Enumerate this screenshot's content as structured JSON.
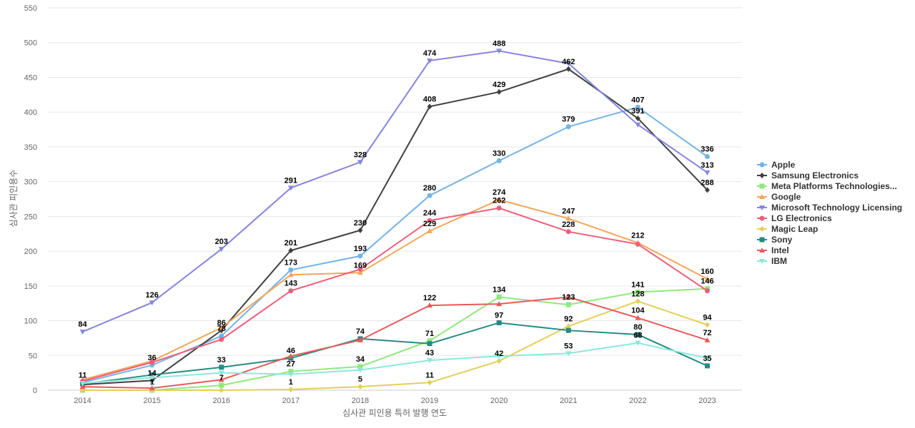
{
  "chart_data": {
    "type": "line",
    "title": "",
    "xlabel": "심사관 피인용 특허 발행 연도",
    "ylabel": "심사관 피인용수",
    "ylim": [
      0,
      550
    ],
    "yticks": [
      0,
      50,
      100,
      150,
      200,
      250,
      300,
      350,
      400,
      450,
      500,
      550
    ],
    "grid": true,
    "legend_position": "right",
    "x": [
      "2014",
      "2015",
      "2016",
      "2017",
      "2018",
      "2019",
      "2020",
      "2021",
      "2022",
      "2023"
    ],
    "series": [
      {
        "name": "Apple",
        "color": "#74b3e6",
        "marker": "circle",
        "values": [
          11,
          36,
          78,
          173,
          193,
          280,
          330,
          379,
          407,
          336
        ]
      },
      {
        "name": "Samsung Electronics",
        "color": "#404040",
        "marker": "diamond",
        "values": [
          8,
          14,
          86,
          201,
          230,
          408,
          429,
          462,
          391,
          288
        ]
      },
      {
        "name": "Meta Platforms Technologies...",
        "color": "#8fe87c",
        "marker": "square",
        "values": [
          0,
          0,
          7,
          27,
          34,
          71,
          134,
          123,
          141,
          146
        ]
      },
      {
        "name": "Google",
        "color": "#f4a55a",
        "marker": "triangle",
        "values": [
          15,
          42,
          90,
          166,
          169,
          229,
          274,
          247,
          212,
          160
        ]
      },
      {
        "name": "Microsoft Technology Licensing",
        "color": "#8585e0",
        "marker": "triangle-down",
        "values": [
          84,
          126,
          203,
          291,
          328,
          474,
          488,
          470,
          382,
          313
        ]
      },
      {
        "name": "LG Electronics",
        "color": "#ec5f7b",
        "marker": "circle",
        "values": [
          13,
          40,
          73,
          143,
          174,
          244,
          262,
          228,
          210,
          143
        ]
      },
      {
        "name": "Magic Leap",
        "color": "#e3cf5a",
        "marker": "diamond",
        "values": [
          0,
          0,
          0,
          1,
          5,
          11,
          42,
          92,
          128,
          94
        ]
      },
      {
        "name": "Sony",
        "color": "#268a84",
        "marker": "square",
        "values": [
          9,
          22,
          33,
          46,
          74,
          67,
          97,
          86,
          80,
          35
        ]
      },
      {
        "name": "Intel",
        "color": "#e85a5a",
        "marker": "triangle",
        "values": [
          5,
          3,
          15,
          49,
          72,
          122,
          124,
          134,
          104,
          72
        ]
      },
      {
        "name": "IBM",
        "color": "#8ae8dc",
        "marker": "triangle-down",
        "values": [
          10,
          18,
          25,
          23,
          29,
          43,
          49,
          53,
          68,
          46
        ]
      }
    ],
    "data_labels": [
      {
        "x": "2014",
        "text": "84"
      },
      {
        "x": "2014",
        "text": "11"
      },
      {
        "x": "2015",
        "text": "126"
      },
      {
        "x": "2015",
        "text": "36"
      },
      {
        "x": "2015",
        "text": "14"
      },
      {
        "x": "2015",
        "text": "1"
      },
      {
        "x": "2016",
        "text": "203"
      },
      {
        "x": "2016",
        "text": "86"
      },
      {
        "x": "2016",
        "text": "78"
      },
      {
        "x": "2016",
        "text": "33"
      },
      {
        "x": "2016",
        "text": "7"
      },
      {
        "x": "2017",
        "text": "291"
      },
      {
        "x": "2017",
        "text": "201"
      },
      {
        "x": "2017",
        "text": "173"
      },
      {
        "x": "2017",
        "text": "143"
      },
      {
        "x": "2017",
        "text": "46"
      },
      {
        "x": "2017",
        "text": "27"
      },
      {
        "x": "2017",
        "text": "1"
      },
      {
        "x": "2018",
        "text": "328"
      },
      {
        "x": "2018",
        "text": "230"
      },
      {
        "x": "2018",
        "text": "193"
      },
      {
        "x": "2018",
        "text": "169"
      },
      {
        "x": "2018",
        "text": "74"
      },
      {
        "x": "2018",
        "text": "34"
      },
      {
        "x": "2018",
        "text": "5"
      },
      {
        "x": "2019",
        "text": "474"
      },
      {
        "x": "2019",
        "text": "408"
      },
      {
        "x": "2019",
        "text": "280"
      },
      {
        "x": "2019",
        "text": "244"
      },
      {
        "x": "2019",
        "text": "229"
      },
      {
        "x": "2019",
        "text": "122"
      },
      {
        "x": "2019",
        "text": "71"
      },
      {
        "x": "2019",
        "text": "43"
      },
      {
        "x": "2019",
        "text": "11"
      },
      {
        "x": "2020",
        "text": "488"
      },
      {
        "x": "2020",
        "text": "429"
      },
      {
        "x": "2020",
        "text": "330"
      },
      {
        "x": "2020",
        "text": "274"
      },
      {
        "x": "2020",
        "text": "262"
      },
      {
        "x": "2020",
        "text": "134"
      },
      {
        "x": "2020",
        "text": "97"
      },
      {
        "x": "2020",
        "text": "42"
      },
      {
        "x": "2021",
        "text": "462"
      },
      {
        "x": "2021",
        "text": "379"
      },
      {
        "x": "2021",
        "text": "247"
      },
      {
        "x": "2021",
        "text": "228"
      },
      {
        "x": "2021",
        "text": "123"
      },
      {
        "x": "2021",
        "text": "92"
      },
      {
        "x": "2021",
        "text": "53"
      },
      {
        "x": "2022",
        "text": "407"
      },
      {
        "x": "2022",
        "text": "391"
      },
      {
        "x": "2022",
        "text": "212"
      },
      {
        "x": "2022",
        "text": "141"
      },
      {
        "x": "2022",
        "text": "128"
      },
      {
        "x": "2022",
        "text": "104"
      },
      {
        "x": "2022",
        "text": "80"
      },
      {
        "x": "2022",
        "text": "68"
      },
      {
        "x": "2023",
        "text": "336"
      },
      {
        "x": "2023",
        "text": "313"
      },
      {
        "x": "2023",
        "text": "288"
      },
      {
        "x": "2023",
        "text": "160"
      },
      {
        "x": "2023",
        "text": "146"
      },
      {
        "x": "2023",
        "text": "94"
      },
      {
        "x": "2023",
        "text": "72"
      },
      {
        "x": "2023",
        "text": "35"
      }
    ]
  }
}
